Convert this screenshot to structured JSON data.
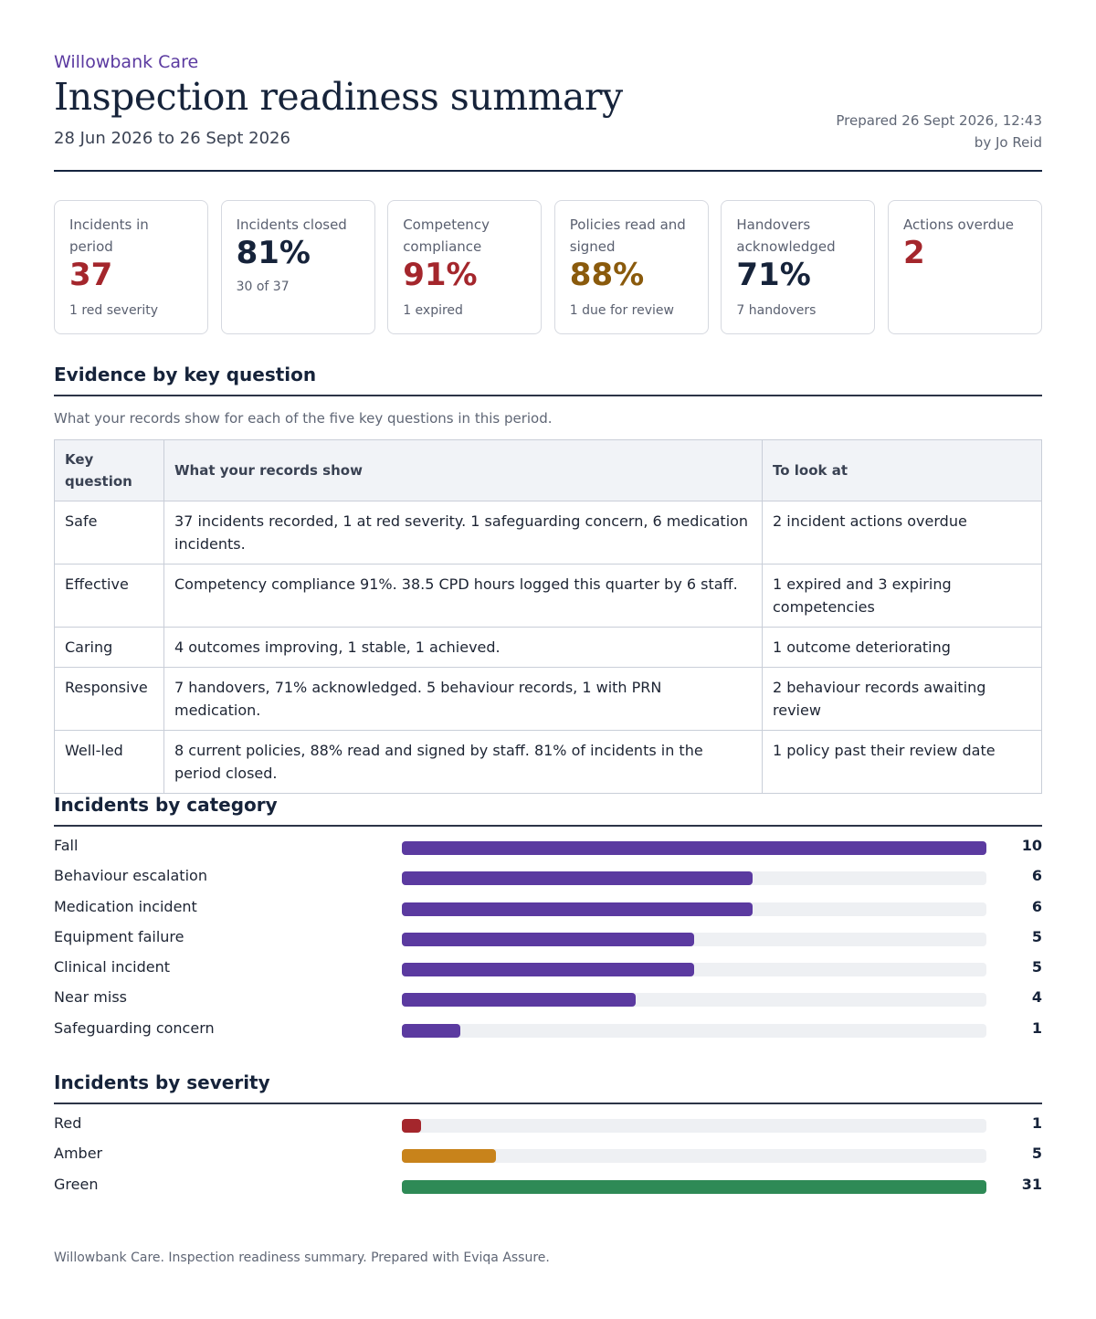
{
  "header": {
    "org": "Willowbank Care",
    "title": "Inspection readiness summary",
    "period": "28 Jun 2026 to 26 Sept 2026",
    "prepared_line1": "Prepared 26 Sept 2026, 12:43",
    "prepared_line2": "by Jo Reid"
  },
  "kpis": [
    {
      "label": "Incidents in period",
      "value": "37",
      "note": "1 red severity",
      "tone": "red"
    },
    {
      "label": "Incidents closed",
      "value": "81%",
      "note": "30 of 37",
      "tone": "navy"
    },
    {
      "label": "Competency compliance",
      "value": "91%",
      "note": "1 expired",
      "tone": "red"
    },
    {
      "label": "Policies read and signed",
      "value": "88%",
      "note": "1 due for review",
      "tone": "amber"
    },
    {
      "label": "Handovers acknowledged",
      "value": "71%",
      "note": "7 handovers",
      "tone": "navy"
    },
    {
      "label": "Actions overdue",
      "value": "2",
      "note": "",
      "tone": "red"
    }
  ],
  "evidence": {
    "title": "Evidence by key question",
    "description": "What your records show for each of the five key questions in this period.",
    "headers": [
      "Key question",
      "What your records show",
      "To look at"
    ],
    "rows": [
      [
        "Safe",
        "37 incidents recorded, 1 at red severity. 1 safeguarding concern, 6 medication incidents.",
        "2 incident actions overdue"
      ],
      [
        "Effective",
        "Competency compliance 91%. 38.5 CPD hours logged this quarter by 6 staff.",
        "1 expired and 3 expiring competencies"
      ],
      [
        "Caring",
        "4 outcomes improving, 1 stable, 1 achieved.",
        "1 outcome deteriorating"
      ],
      [
        "Responsive",
        "7 handovers, 71% acknowledged. 5 behaviour records, 1 with PRN medication.",
        "2 behaviour records awaiting review"
      ],
      [
        "Well-led",
        "8 current policies, 88% read and signed by staff. 81% of incidents in the period closed.",
        "1 policy past their review date"
      ]
    ]
  },
  "chart_data": [
    {
      "type": "bar",
      "title": "Incidents by category",
      "categories": [
        "Fall",
        "Behaviour escalation",
        "Medication incident",
        "Equipment failure",
        "Clinical incident",
        "Near miss",
        "Safeguarding concern"
      ],
      "values": [
        10,
        6,
        6,
        5,
        5,
        4,
        1
      ],
      "max": 10,
      "colors": [
        "#5b3aa0",
        "#5b3aa0",
        "#5b3aa0",
        "#5b3aa0",
        "#5b3aa0",
        "#5b3aa0",
        "#5b3aa0"
      ]
    },
    {
      "type": "bar",
      "title": "Incidents by severity",
      "categories": [
        "Red",
        "Amber",
        "Green"
      ],
      "values": [
        1,
        5,
        31
      ],
      "max": 31,
      "colors": [
        "#a4262c",
        "#c8831b",
        "#2e8a56"
      ]
    }
  ],
  "footer": "Willowbank Care. Inspection readiness summary. Prepared with Eviqa Assure."
}
